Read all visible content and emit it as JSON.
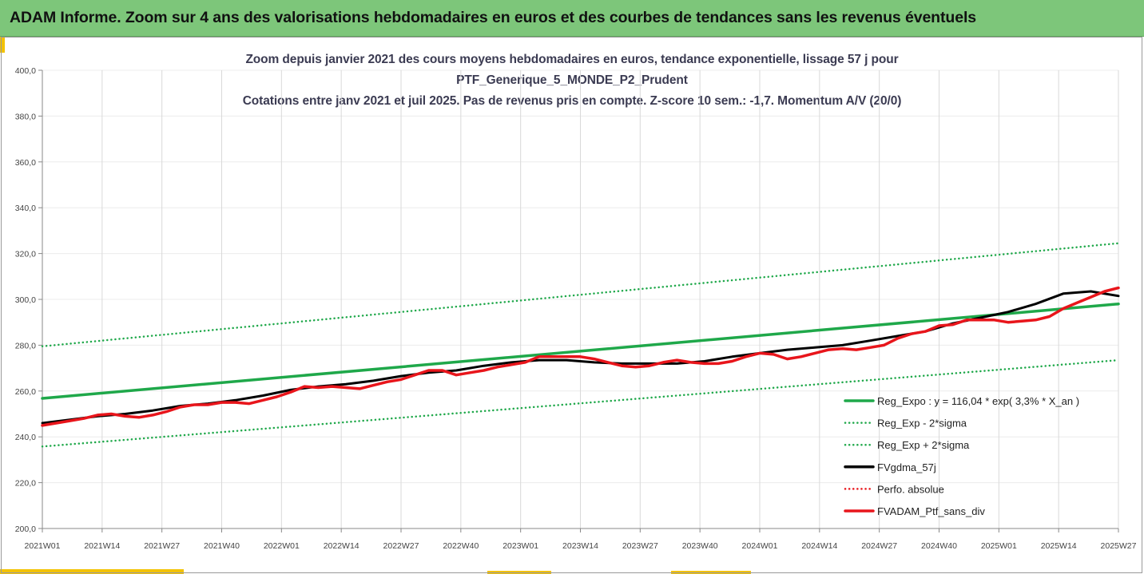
{
  "banner": {
    "title": "ADAM Informe. Zoom sur 4 ans des valorisations hebdomadaires en euros et des courbes de tendances sans les revenus éventuels"
  },
  "colors": {
    "banner": "#7dc67a",
    "accent": "#f2c200",
    "trend": "#1fa84a",
    "smooth": "#000000",
    "price": "#e8151b",
    "perfo": "#e8151b"
  },
  "chart_data": {
    "type": "line",
    "title_lines": [
      "Zoom depuis janvier 2021 des cours moyens hebdomadaires  en euros, tendance exponentielle, lissage 57 j pour",
      "PTF_Generique_5_MONDE_P2_Prudent",
      "Cotations entre janv 2021 et juil 2025. Pas de revenus pris en compte. Z-score 10 sem.: -1,7. Momentum A/V (20/0)"
    ],
    "x_tick_labels": [
      "2021W01",
      "2021W14",
      "2021W27",
      "2021W40",
      "2022W01",
      "2022W14",
      "2022W27",
      "2022W40",
      "2023W01",
      "2023W14",
      "2023W27",
      "2023W40",
      "2024W01",
      "2024W14",
      "2024W27",
      "2024W40",
      "2025W01",
      "2025W14",
      "2025W27"
    ],
    "y_tick_labels": [
      "200,0",
      "220,0",
      "240,0",
      "260,0",
      "280,0",
      "300,0",
      "320,0",
      "340,0",
      "360,0",
      "380,0",
      "400,0"
    ],
    "ylim": [
      200,
      400
    ],
    "x_unit": "weeks since 2021W01",
    "xlim": [
      0,
      234
    ],
    "grid": "vertical",
    "legend_position": "bottom-right",
    "series": [
      {
        "name": "Reg_Expo : y = 116,04 * exp( 3,3% *  X_an )",
        "style": "solid",
        "color": "#1fa84a",
        "x": [
          0,
          234
        ],
        "y": [
          256.8,
          298.0
        ]
      },
      {
        "name": "Reg_Exp - 2*sigma",
        "style": "dotted",
        "color": "#1fa84a",
        "x": [
          0,
          234
        ],
        "y": [
          235.8,
          273.5
        ]
      },
      {
        "name": "Reg_Exp + 2*sigma",
        "style": "dotted",
        "color": "#1fa84a",
        "x": [
          0,
          234
        ],
        "y": [
          279.5,
          324.5
        ]
      },
      {
        "name": "FVgdma_57j",
        "style": "solid",
        "color": "#000000",
        "x": [
          0,
          6,
          12,
          18,
          24,
          30,
          36,
          42,
          48,
          54,
          60,
          66,
          72,
          78,
          84,
          90,
          96,
          102,
          108,
          114,
          120,
          126,
          132,
          138,
          144,
          150,
          156,
          162,
          168,
          174,
          180,
          186,
          192,
          198,
          204,
          210,
          216,
          222,
          228,
          234
        ],
        "y": [
          246,
          247.5,
          249,
          250,
          251.5,
          253.5,
          254.5,
          256,
          258,
          260.5,
          262,
          263,
          264.5,
          266.5,
          268,
          269,
          271,
          272.5,
          273.5,
          273.5,
          272.5,
          272,
          272,
          272,
          273,
          275,
          276.5,
          278,
          279,
          280,
          282,
          284,
          286,
          289.5,
          292,
          294.5,
          298,
          302.5,
          303.5,
          301.5
        ]
      },
      {
        "name": "Perfo. absolue",
        "style": "dotted",
        "color": "#e8151b",
        "x": [],
        "y": []
      },
      {
        "name": "FVADAM_Ptf_sans_div",
        "style": "solid",
        "color": "#e8151b",
        "x": [
          0,
          3,
          6,
          9,
          12,
          15,
          18,
          21,
          24,
          27,
          30,
          33,
          36,
          39,
          42,
          45,
          48,
          51,
          54,
          57,
          60,
          63,
          66,
          69,
          72,
          75,
          78,
          81,
          84,
          87,
          90,
          93,
          96,
          99,
          102,
          105,
          108,
          111,
          114,
          117,
          120,
          123,
          126,
          129,
          132,
          135,
          138,
          141,
          144,
          147,
          150,
          153,
          156,
          159,
          162,
          165,
          168,
          171,
          174,
          177,
          180,
          183,
          186,
          189,
          192,
          195,
          198,
          201,
          204,
          207,
          210,
          213,
          216,
          219,
          222,
          225,
          228,
          231,
          234
        ],
        "y": [
          245,
          246,
          247,
          248,
          249.5,
          250,
          249,
          248.5,
          249.5,
          251,
          253,
          254,
          254,
          255,
          255,
          254.5,
          256,
          257.5,
          259.5,
          262,
          261.5,
          262,
          261.5,
          261,
          262.5,
          264,
          265,
          267,
          269,
          269,
          267,
          268,
          269,
          270.5,
          271.5,
          272.5,
          275,
          275,
          275,
          275,
          274,
          272.5,
          271,
          270.5,
          271,
          272.5,
          273.5,
          272.5,
          272,
          272,
          273,
          275,
          276.5,
          276,
          274,
          275,
          276.5,
          278,
          278.5,
          278,
          279,
          280,
          283,
          285,
          286,
          288.5,
          289,
          291,
          291,
          291,
          290,
          290.5,
          291,
          292.5,
          296,
          298.5,
          301,
          303.5,
          305
        ]
      }
    ],
    "legend": [
      "Reg_Expo : y = 116,04 * exp( 3,3% *  X_an )",
      "Reg_Exp - 2*sigma",
      "Reg_Exp + 2*sigma",
      "FVgdma_57j",
      "Perfo. absolue",
      "FVADAM_Ptf_sans_div"
    ]
  }
}
